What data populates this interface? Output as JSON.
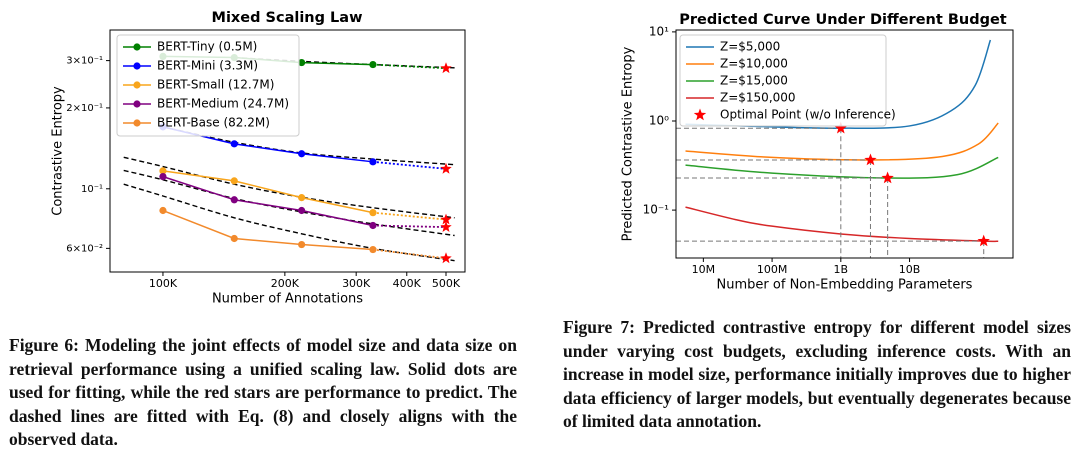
{
  "chart_data": [
    {
      "type": "line",
      "title": "Mixed Scaling Law",
      "x_label": "Number of Annotations",
      "y_label": "Contrastive Entropy",
      "xscale": "log",
      "yscale": "log",
      "xlim": [
        74000,
        557000
      ],
      "ylim": [
        0.049,
        0.39
      ],
      "xticks": [
        {
          "value": 100000,
          "label": "100K"
        },
        {
          "value": 200000,
          "label": "200K"
        },
        {
          "value": 300000,
          "label": "300K"
        },
        {
          "value": 400000,
          "label": "400K"
        },
        {
          "value": 500000,
          "label": "500K"
        }
      ],
      "yticks": [
        {
          "value": 0.06,
          "label": "6×10⁻²"
        },
        {
          "value": 0.1,
          "label": "10⁻¹"
        },
        {
          "value": 0.2,
          "label": "2×10⁻¹"
        },
        {
          "value": 0.3,
          "label": "3×10⁻¹"
        }
      ],
      "legend": "upper left",
      "x": [
        100000,
        150000,
        220000,
        330000
      ],
      "predict_x": [
        500000
      ],
      "predict_color": "#ff0000",
      "series": [
        {
          "name": "BERT-Tiny (0.5M)",
          "color": "#008000",
          "values": [
            0.311,
            0.308,
            0.295,
            0.29
          ],
          "predicted": [
            0.281
          ]
        },
        {
          "name": "BERT-Mini (3.3M)",
          "color": "#0000ff",
          "values": [
            0.17,
            0.147,
            0.135,
            0.126
          ],
          "predicted": [
            0.1186
          ]
        },
        {
          "name": "BERT-Small (12.7M)",
          "color": "#f8a51c",
          "values": [
            0.1166,
            0.107,
            0.0927,
            0.0815
          ],
          "predicted": [
            0.0768
          ]
        },
        {
          "name": "BERT-Medium (24.7M)",
          "color": "#800080",
          "values": [
            0.111,
            0.091,
            0.083,
            0.073
          ],
          "predicted": [
            0.072
          ]
        },
        {
          "name": "BERT-Base (82.2M)",
          "color": "#f28a2c",
          "values": [
            0.083,
            0.0653,
            0.062,
            0.0594
          ],
          "predicted": [
            0.0551
          ]
        }
      ],
      "fits": [
        {
          "color": "#000000",
          "x": [
            150000,
            220000,
            330000,
            525000
          ],
          "values": [
            0.308,
            0.298,
            0.29,
            0.282
          ]
        },
        {
          "color": "#000000",
          "x": [
            100000,
            150000,
            220000,
            330000,
            525000
          ],
          "values": [
            0.17,
            0.149,
            0.136,
            0.129,
            0.123
          ]
        },
        {
          "color": "#000000",
          "x": [
            80000,
            100000,
            150000,
            220000,
            330000,
            525000
          ],
          "values": [
            0.131,
            0.121,
            0.104,
            0.093,
            0.085,
            0.078
          ]
        },
        {
          "color": "#000000",
          "x": [
            80000,
            100000,
            150000,
            220000,
            330000,
            525000
          ],
          "values": [
            0.117,
            0.108,
            0.092,
            0.082,
            0.074,
            0.067
          ]
        },
        {
          "color": "#000000",
          "x": [
            80000,
            100000,
            150000,
            220000,
            330000,
            525000
          ],
          "values": [
            0.104,
            0.094,
            0.078,
            0.068,
            0.06,
            0.054
          ]
        }
      ]
    },
    {
      "type": "line",
      "title": "Predicted Curve Under Different Budget",
      "x_label": "Number of Non-Embedding Parameters",
      "y_label": "Predicted Contrastive Entropy",
      "xscale": "log",
      "yscale": "log",
      "xlim": [
        4000000,
        320000000000
      ],
      "ylim": [
        0.029,
        10.5
      ],
      "xticks": [
        {
          "value": 10000000,
          "label": "10M"
        },
        {
          "value": 100000000,
          "label": "100M"
        },
        {
          "value": 1000000000,
          "label": "1B"
        },
        {
          "value": 10000000000,
          "label": "10B"
        }
      ],
      "yticks": [
        {
          "value": 0.1,
          "label": "10⁻¹"
        },
        {
          "value": 1,
          "label": "10⁰"
        },
        {
          "value": 10,
          "label": "10¹"
        }
      ],
      "legend": "upper left",
      "series": [
        {
          "name": "Z=$5,000",
          "color": "#1f77b4",
          "x": [
            5500000,
            100000000,
            1000000000,
            10000000000,
            40000000000,
            90000000000,
            150000000000
          ],
          "values": [
            0.92,
            0.86,
            0.83,
            0.88,
            1.3,
            2.5,
            8.1
          ]
        },
        {
          "name": "Z=$10,000",
          "color": "#ff7f0e",
          "x": [
            5500000,
            100000000,
            2700000000,
            30000000000,
            100000000000,
            195000000000
          ],
          "values": [
            0.46,
            0.39,
            0.365,
            0.4,
            0.55,
            0.95
          ]
        },
        {
          "name": "Z=$15,000",
          "color": "#2ca02c",
          "x": [
            5500000,
            100000000,
            4800000000,
            50000000000,
            195000000000
          ],
          "values": [
            0.32,
            0.26,
            0.229,
            0.25,
            0.39
          ]
        },
        {
          "name": "Z=$150,000",
          "color": "#d62728",
          "x": [
            5500000,
            30000000,
            100000000,
            1000000000,
            10000000000,
            120000000000,
            195000000000
          ],
          "values": [
            0.108,
            0.078,
            0.066,
            0.054,
            0.048,
            0.0449,
            0.0447
          ]
        },
        {
          "name": "Optimal Point (w/o Inference)",
          "color": "#ff0000",
          "marker": "star",
          "x": [
            1000000000,
            2700000000,
            4800000000,
            120000000000
          ],
          "values": [
            0.83,
            0.365,
            0.229,
            0.0449
          ]
        }
      ]
    }
  ],
  "captions": [
    "Figure 6: Modeling the joint effects of model size and data size on retrieval performance using a unified scaling law. Solid dots are used for fitting, while the red stars are performance to predict. The dashed lines are fitted with Eq. (8) and closely aligns with the observed data.",
    "Figure 7: Predicted contrastive entropy for different model sizes under varying cost budgets, excluding inference costs. With an increase in model size, performance initially improves due to higher data efficiency of larger models, but eventually degenerates because of limited data annotation."
  ]
}
